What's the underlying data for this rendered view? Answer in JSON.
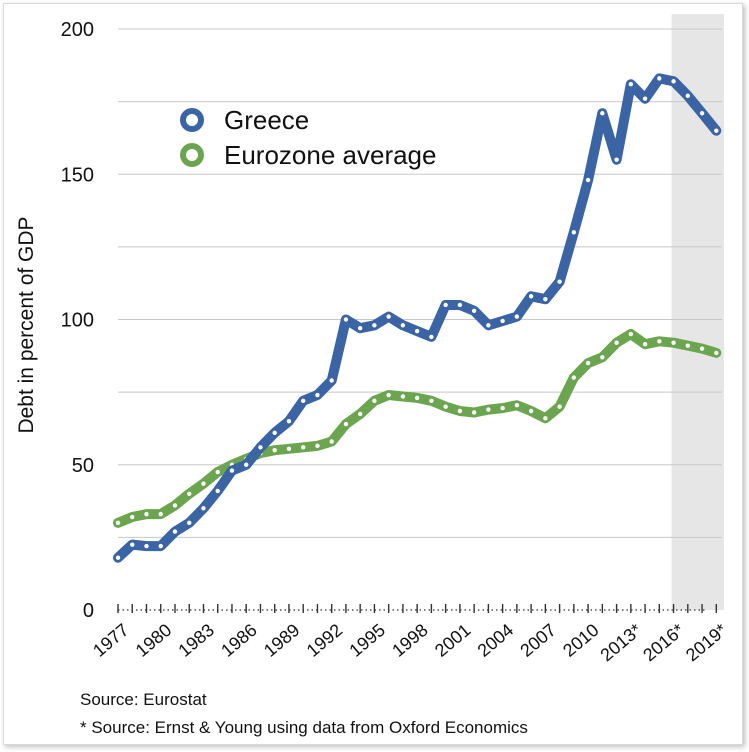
{
  "chart_data": {
    "type": "line",
    "ylabel": "Debt in percent of GDP",
    "xlabel": "",
    "ylim": [
      0,
      200
    ],
    "yticks": [
      0,
      50,
      100,
      150,
      200
    ],
    "grid": true,
    "legend_position": "top-left",
    "x": [
      1977,
      1978,
      1979,
      1980,
      1981,
      1982,
      1983,
      1984,
      1985,
      1986,
      1987,
      1988,
      1989,
      1990,
      1991,
      1992,
      1993,
      1994,
      1995,
      1996,
      1997,
      1998,
      1999,
      2000,
      2001,
      2002,
      2003,
      2004,
      2005,
      2006,
      2007,
      2008,
      2009,
      2010,
      2011,
      2012,
      2013,
      2014,
      2015,
      2016,
      2017,
      2018,
      2019
    ],
    "x_tick_labels": [
      "1977",
      "1980",
      "1983",
      "1986",
      "1989",
      "1992",
      "1995",
      "1998",
      "2001",
      "2004",
      "2007",
      "2010",
      "2013*",
      "2016*",
      "2019*"
    ],
    "shaded_region": [
      2016,
      2019
    ],
    "series": [
      {
        "name": "Greece",
        "color": "#3a64a3",
        "values": [
          18,
          22.5,
          22,
          22,
          27,
          30,
          35,
          41,
          48,
          50,
          56,
          61,
          65,
          72,
          74,
          79,
          100,
          97,
          98,
          101,
          98,
          96,
          94,
          105,
          105,
          103,
          98,
          99.5,
          101,
          108,
          107,
          113,
          130,
          148,
          171,
          155,
          181,
          176,
          183,
          182,
          177,
          171,
          165
        ]
      },
      {
        "name": "Eurozone average",
        "color": "#6ca550",
        "values": [
          30,
          32,
          33,
          33,
          36,
          40,
          43.5,
          47.5,
          50,
          52,
          54,
          55,
          55.5,
          56,
          56.5,
          58,
          64,
          67.5,
          72,
          74,
          73.5,
          73,
          72,
          70,
          68.5,
          68,
          69,
          69.5,
          70.5,
          68.5,
          66,
          70,
          80,
          85,
          87,
          92,
          95,
          91.5,
          92.5,
          92,
          91,
          90,
          88.5
        ]
      }
    ]
  },
  "source_line_1": "Source: Eurostat",
  "source_line_2": "* Source: Ernst & Young using data from Oxford Economics"
}
